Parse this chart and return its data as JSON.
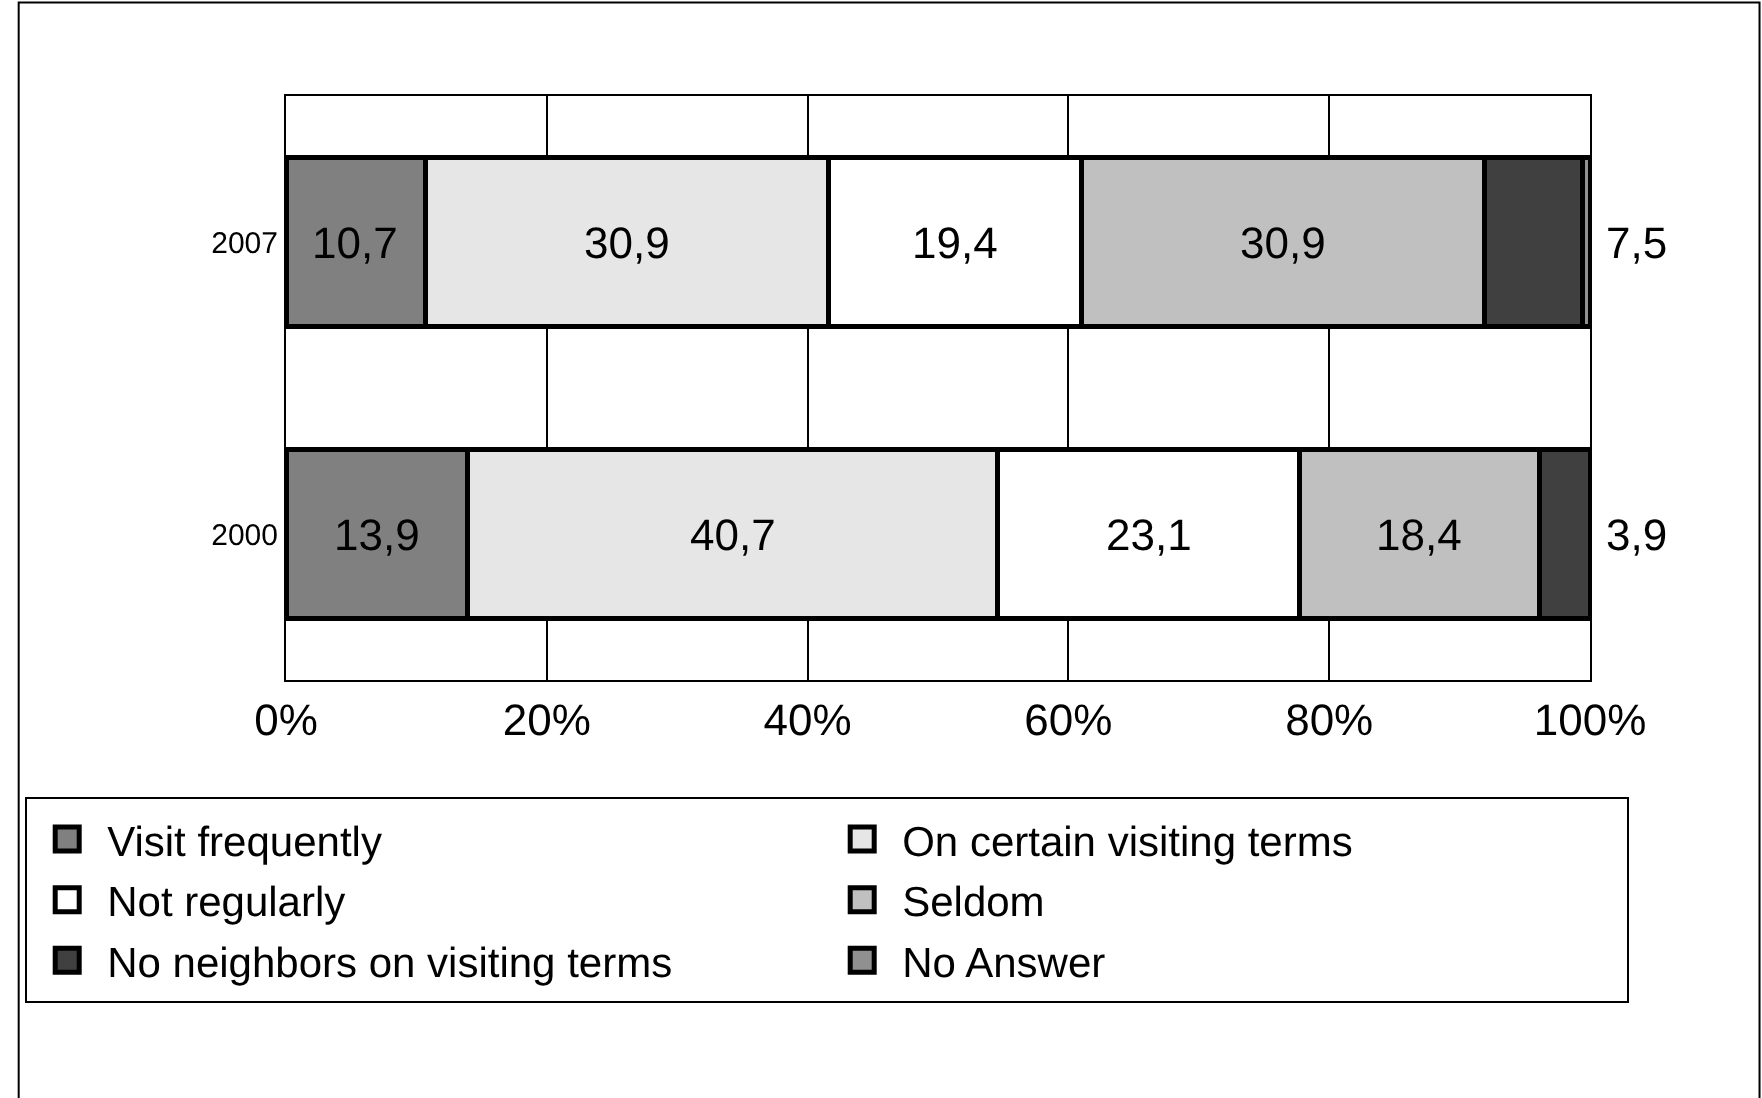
{
  "chart_data": {
    "type": "bar",
    "orientation": "horizontal",
    "stacked": true,
    "categories": [
      "2007",
      "2000"
    ],
    "series": [
      {
        "name": "Visit frequently",
        "color": "#808080",
        "values": [
          10.7,
          13.9
        ],
        "value_labels": [
          "10,7",
          "13,9"
        ]
      },
      {
        "name": "On certain visiting terms",
        "color": "#e6e6e6",
        "values": [
          30.9,
          40.7
        ],
        "value_labels": [
          "30,9",
          "40,7"
        ]
      },
      {
        "name": "Not regularly",
        "color": "#ffffff",
        "values": [
          19.4,
          23.1
        ],
        "value_labels": [
          "19,4",
          "23,1"
        ]
      },
      {
        "name": "Seldom",
        "color": "#c0c0c0",
        "values": [
          30.9,
          18.4
        ],
        "value_labels": [
          "30,9",
          "18,4"
        ]
      },
      {
        "name": "No neighbors on visiting terms",
        "color": "#404040",
        "values": [
          7.5,
          3.9
        ],
        "value_labels": [
          "7,5",
          "3,9"
        ]
      },
      {
        "name": "No Answer",
        "color": "#909090",
        "values": [
          0.6,
          0
        ],
        "value_labels": [
          null,
          null
        ]
      }
    ],
    "xlim": [
      0,
      100
    ],
    "xticks": [
      {
        "value": 0,
        "label": "0%"
      },
      {
        "value": 20,
        "label": "20%"
      },
      {
        "value": 40,
        "label": "40%"
      },
      {
        "value": 60,
        "label": "60%"
      },
      {
        "value": 80,
        "label": "80%"
      },
      {
        "value": 100,
        "label": "100%"
      }
    ],
    "grid": "x",
    "legend": "bottom"
  }
}
